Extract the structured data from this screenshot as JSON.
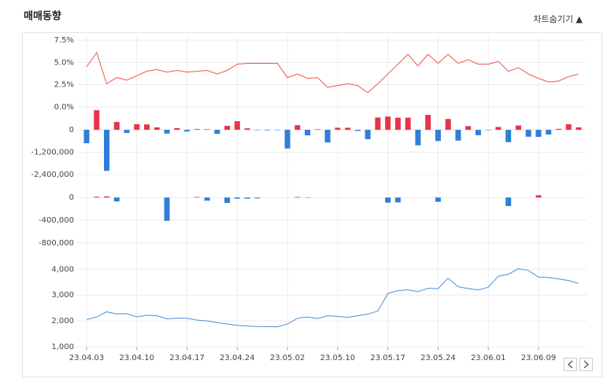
{
  "header": {
    "title": "매매동향",
    "toggle": "차트숨기기 ▲"
  },
  "chart_data": [
    {
      "type": "line",
      "color": "#f0524f",
      "grid": true,
      "values": [
        4.5,
        6.1,
        2.6,
        3.3,
        3.0,
        3.5,
        4.0,
        4.2,
        3.9,
        4.1,
        3.9,
        4.0,
        4.1,
        3.7,
        4.1,
        4.8,
        4.9,
        4.9,
        4.9,
        4.9,
        3.3,
        3.7,
        3.2,
        3.3,
        2.2,
        2.4,
        2.6,
        2.4,
        1.6,
        2.6,
        3.7,
        4.8,
        5.9,
        4.6,
        5.9,
        4.9,
        5.9,
        4.9,
        5.3,
        4.8,
        4.8,
        5.1,
        4.0,
        4.4,
        3.7,
        3.2,
        2.8,
        2.9,
        3.4,
        3.7
      ],
      "ylim": [
        0,
        7.5
      ],
      "yticks": [
        {
          "value": 7.5,
          "label": "7.5%"
        },
        {
          "value": 5.0,
          "label": "5.0%"
        },
        {
          "value": 2.5,
          "label": "2.5%"
        },
        {
          "value": 0.0,
          "label": "0.0%"
        }
      ]
    },
    {
      "type": "bar",
      "positive_color": "#e8334a",
      "negative_color": "#2f7ed8",
      "grid": true,
      "values": [
        -720000,
        1050000,
        -2200000,
        420000,
        -170000,
        300000,
        290000,
        130000,
        -200000,
        90000,
        -90000,
        40000,
        30000,
        -220000,
        210000,
        460000,
        80000,
        -20000,
        -30000,
        -20000,
        -1000000,
        250000,
        -300000,
        30000,
        -680000,
        110000,
        110000,
        -60000,
        -500000,
        660000,
        710000,
        650000,
        650000,
        -830000,
        800000,
        -600000,
        580000,
        -580000,
        200000,
        -290000,
        -20000,
        150000,
        -660000,
        230000,
        -370000,
        -380000,
        -250000,
        50000,
        300000,
        130000
      ],
      "ylim": [
        -2400000,
        1100000
      ],
      "yticks": [
        0,
        {
          "value": -1200000,
          "label": "-1,200,000"
        },
        {
          "value": -2400000,
          "label": "-2,400,000"
        }
      ]
    },
    {
      "type": "bar",
      "positive_color": "#e8334a",
      "negative_color": "#2f7ed8",
      "grid": true,
      "values": [
        0,
        15000,
        20000,
        -70000,
        0,
        0,
        0,
        0,
        -410000,
        0,
        0,
        10000,
        -55000,
        0,
        -95000,
        -20000,
        -20000,
        -15000,
        0,
        0,
        0,
        10000,
        -5000,
        0,
        0,
        0,
        0,
        0,
        0,
        0,
        -90000,
        -85000,
        0,
        0,
        0,
        -75000,
        0,
        0,
        0,
        0,
        0,
        0,
        -150000,
        0,
        0,
        40000,
        0,
        0,
        0,
        0
      ],
      "ylim": [
        -800000,
        100000
      ],
      "yticks": [
        0,
        {
          "value": -400000,
          "label": "-400,000"
        },
        {
          "value": -800000,
          "label": "-800,000"
        }
      ]
    },
    {
      "type": "line",
      "color": "#4a90d9",
      "grid": true,
      "values": [
        2050,
        2150,
        2350,
        2270,
        2280,
        2150,
        2220,
        2200,
        2080,
        2100,
        2100,
        2030,
        2000,
        1930,
        1880,
        1830,
        1800,
        1780,
        1780,
        1770,
        1880,
        2100,
        2150,
        2090,
        2200,
        2170,
        2140,
        2200,
        2260,
        2380,
        3060,
        3170,
        3200,
        3130,
        3260,
        3250,
        3650,
        3320,
        3250,
        3200,
        3300,
        3730,
        3800,
        4020,
        3950,
        3690,
        3680,
        3620,
        3560,
        3450
      ],
      "ylim": [
        1000,
        4100
      ],
      "yticks": [
        {
          "value": 4000,
          "label": "4,000"
        },
        {
          "value": 3000,
          "label": "3,000"
        },
        {
          "value": 2000,
          "label": "2,000"
        },
        {
          "value": 1000,
          "label": "1,000"
        }
      ],
      "categories": [
        "23.04.03",
        null,
        null,
        null,
        null,
        "23.04.10",
        null,
        null,
        null,
        null,
        "23.04.17",
        null,
        null,
        null,
        null,
        "23.04.24",
        null,
        null,
        null,
        null,
        "23.05.02",
        null,
        null,
        null,
        null,
        "23.05.10",
        null,
        null,
        null,
        null,
        "23.05.17",
        null,
        null,
        null,
        null,
        "23.05.24",
        null,
        null,
        null,
        null,
        "23.06.01",
        null,
        null,
        null,
        null,
        "23.06.09",
        null,
        null,
        null,
        null
      ]
    }
  ]
}
